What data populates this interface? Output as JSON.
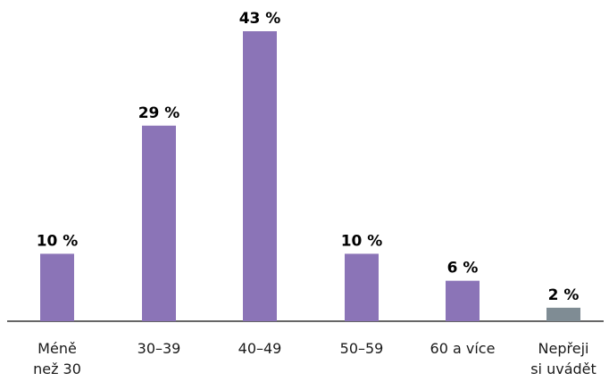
{
  "chart_data": {
    "type": "bar",
    "categories": [
      [
        "Méně",
        "než 30"
      ],
      [
        "30–39"
      ],
      [
        "40–49"
      ],
      [
        "50–59"
      ],
      [
        "60 a více"
      ],
      [
        "Nepřeji",
        "si uvádět"
      ]
    ],
    "values": [
      10,
      29,
      43,
      10,
      6,
      2
    ],
    "value_labels": [
      "10 %",
      "29 %",
      "43 %",
      "10 %",
      "6 %",
      "2 %"
    ],
    "ylim": [
      0,
      43
    ],
    "grid": false,
    "colors": {
      "bar": "#8b74b7",
      "bar_last": "#7f8c94",
      "axis": "#333333"
    }
  }
}
